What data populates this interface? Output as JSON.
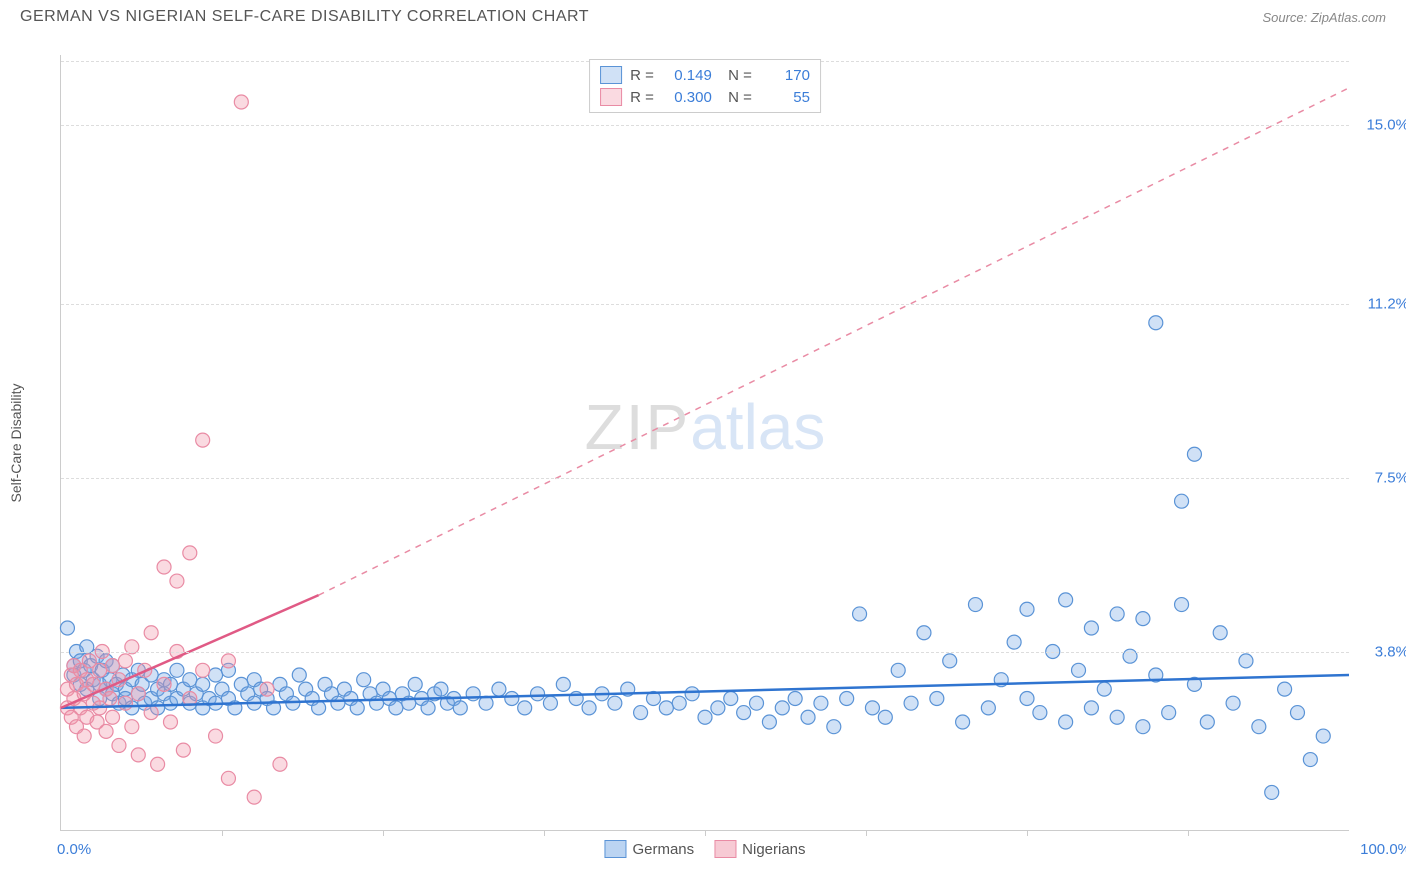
{
  "title": "GERMAN VS NIGERIAN SELF-CARE DISABILITY CORRELATION CHART",
  "source": "Source: ZipAtlas.com",
  "ylabel": "Self-Care Disability",
  "watermark": {
    "part1": "ZIP",
    "part2": "atlas"
  },
  "chart": {
    "type": "scatter",
    "xlim": [
      0,
      100
    ],
    "ylim": [
      0,
      16.5
    ],
    "xlim_labels": {
      "min": "0.0%",
      "max": "100.0%"
    },
    "yticks": [
      {
        "v": 3.8,
        "label": "3.8%"
      },
      {
        "v": 7.5,
        "label": "7.5%"
      },
      {
        "v": 11.2,
        "label": "11.2%"
      },
      {
        "v": 15.0,
        "label": "15.0%"
      }
    ],
    "xticks_minor": [
      12.5,
      25,
      37.5,
      50,
      62.5,
      75,
      87.5
    ],
    "background_color": "#ffffff",
    "grid_color": "#dddddd",
    "marker_radius": 7,
    "marker_stroke_width": 1.2,
    "series": [
      {
        "name": "Germans",
        "R": "0.149",
        "N": "170",
        "fill": "rgba(120,170,230,0.35)",
        "stroke": "#5a93d6",
        "trend": {
          "x1": 0,
          "y1": 2.6,
          "x2": 100,
          "y2": 3.3,
          "color": "#2f74d0",
          "width": 2.5,
          "dash": ""
        },
        "trend_ext": null,
        "points": [
          [
            0.5,
            4.3
          ],
          [
            1,
            3.5
          ],
          [
            1,
            3.3
          ],
          [
            1.2,
            3.8
          ],
          [
            1.5,
            3.6
          ],
          [
            1.5,
            3.1
          ],
          [
            1.8,
            3.4
          ],
          [
            2,
            3.9
          ],
          [
            2,
            3.0
          ],
          [
            2.3,
            3.5
          ],
          [
            2.5,
            3.2
          ],
          [
            2.8,
            3.7
          ],
          [
            3,
            3.1
          ],
          [
            3,
            2.8
          ],
          [
            3.2,
            3.4
          ],
          [
            3.5,
            3.0
          ],
          [
            3.5,
            3.6
          ],
          [
            3.8,
            3.2
          ],
          [
            4,
            2.9
          ],
          [
            4,
            3.5
          ],
          [
            4.3,
            3.1
          ],
          [
            4.5,
            2.7
          ],
          [
            4.8,
            3.3
          ],
          [
            5,
            3.0
          ],
          [
            5,
            2.8
          ],
          [
            5.5,
            3.2
          ],
          [
            5.5,
            2.6
          ],
          [
            6,
            3.4
          ],
          [
            6,
            2.9
          ],
          [
            6.3,
            3.1
          ],
          [
            6.5,
            2.7
          ],
          [
            7,
            3.3
          ],
          [
            7,
            2.8
          ],
          [
            7.5,
            3.0
          ],
          [
            7.5,
            2.6
          ],
          [
            8,
            3.2
          ],
          [
            8,
            2.9
          ],
          [
            8.5,
            2.7
          ],
          [
            8.5,
            3.1
          ],
          [
            9,
            2.8
          ],
          [
            9,
            3.4
          ],
          [
            9.5,
            3.0
          ],
          [
            10,
            2.7
          ],
          [
            10,
            3.2
          ],
          [
            10.5,
            2.9
          ],
          [
            11,
            2.6
          ],
          [
            11,
            3.1
          ],
          [
            11.5,
            2.8
          ],
          [
            12,
            3.3
          ],
          [
            12,
            2.7
          ],
          [
            12.5,
            3.0
          ],
          [
            13,
            2.8
          ],
          [
            13,
            3.4
          ],
          [
            13.5,
            2.6
          ],
          [
            14,
            3.1
          ],
          [
            14.5,
            2.9
          ],
          [
            15,
            2.7
          ],
          [
            15,
            3.2
          ],
          [
            15.5,
            3.0
          ],
          [
            16,
            2.8
          ],
          [
            16.5,
            2.6
          ],
          [
            17,
            3.1
          ],
          [
            17.5,
            2.9
          ],
          [
            18,
            2.7
          ],
          [
            18.5,
            3.3
          ],
          [
            19,
            3.0
          ],
          [
            19.5,
            2.8
          ],
          [
            20,
            2.6
          ],
          [
            20.5,
            3.1
          ],
          [
            21,
            2.9
          ],
          [
            21.5,
            2.7
          ],
          [
            22,
            3.0
          ],
          [
            22.5,
            2.8
          ],
          [
            23,
            2.6
          ],
          [
            23.5,
            3.2
          ],
          [
            24,
            2.9
          ],
          [
            24.5,
            2.7
          ],
          [
            25,
            3.0
          ],
          [
            25.5,
            2.8
          ],
          [
            26,
            2.6
          ],
          [
            26.5,
            2.9
          ],
          [
            27,
            2.7
          ],
          [
            27.5,
            3.1
          ],
          [
            28,
            2.8
          ],
          [
            28.5,
            2.6
          ],
          [
            29,
            2.9
          ],
          [
            29.5,
            3.0
          ],
          [
            30,
            2.7
          ],
          [
            30.5,
            2.8
          ],
          [
            31,
            2.6
          ],
          [
            32,
            2.9
          ],
          [
            33,
            2.7
          ],
          [
            34,
            3.0
          ],
          [
            35,
            2.8
          ],
          [
            36,
            2.6
          ],
          [
            37,
            2.9
          ],
          [
            38,
            2.7
          ],
          [
            39,
            3.1
          ],
          [
            40,
            2.8
          ],
          [
            41,
            2.6
          ],
          [
            42,
            2.9
          ],
          [
            43,
            2.7
          ],
          [
            44,
            3.0
          ],
          [
            45,
            2.5
          ],
          [
            46,
            2.8
          ],
          [
            47,
            2.6
          ],
          [
            48,
            2.7
          ],
          [
            49,
            2.9
          ],
          [
            50,
            2.4
          ],
          [
            51,
            2.6
          ],
          [
            52,
            2.8
          ],
          [
            53,
            2.5
          ],
          [
            54,
            2.7
          ],
          [
            55,
            2.3
          ],
          [
            56,
            2.6
          ],
          [
            57,
            2.8
          ],
          [
            58,
            2.4
          ],
          [
            59,
            2.7
          ],
          [
            60,
            2.2
          ],
          [
            61,
            2.8
          ],
          [
            62,
            4.6
          ],
          [
            63,
            2.6
          ],
          [
            64,
            2.4
          ],
          [
            65,
            3.4
          ],
          [
            66,
            2.7
          ],
          [
            67,
            4.2
          ],
          [
            68,
            2.8
          ],
          [
            69,
            3.6
          ],
          [
            70,
            2.3
          ],
          [
            71,
            4.8
          ],
          [
            72,
            2.6
          ],
          [
            73,
            3.2
          ],
          [
            74,
            4.0
          ],
          [
            75,
            2.8
          ],
          [
            75,
            4.7
          ],
          [
            76,
            2.5
          ],
          [
            77,
            3.8
          ],
          [
            78,
            2.3
          ],
          [
            78,
            4.9
          ],
          [
            79,
            3.4
          ],
          [
            80,
            2.6
          ],
          [
            80,
            4.3
          ],
          [
            81,
            3.0
          ],
          [
            82,
            2.4
          ],
          [
            82,
            4.6
          ],
          [
            83,
            3.7
          ],
          [
            84,
            2.2
          ],
          [
            84,
            4.5
          ],
          [
            85,
            3.3
          ],
          [
            85,
            10.8
          ],
          [
            86,
            2.5
          ],
          [
            87,
            4.8
          ],
          [
            87,
            7.0
          ],
          [
            88,
            3.1
          ],
          [
            88,
            8.0
          ],
          [
            89,
            2.3
          ],
          [
            90,
            4.2
          ],
          [
            91,
            2.7
          ],
          [
            92,
            3.6
          ],
          [
            93,
            2.2
          ],
          [
            94,
            0.8
          ],
          [
            95,
            3.0
          ],
          [
            96,
            2.5
          ],
          [
            97,
            1.5
          ],
          [
            98,
            2.0
          ]
        ]
      },
      {
        "name": "Nigerians",
        "R": "0.300",
        "N": "55",
        "fill": "rgba(240,150,170,0.35)",
        "stroke": "#e98ba4",
        "trend": {
          "x1": 0,
          "y1": 2.6,
          "x2": 20,
          "y2": 5.0,
          "color": "#e05a85",
          "width": 2.5,
          "dash": ""
        },
        "trend_ext": {
          "x1": 20,
          "y1": 5.0,
          "x2": 100,
          "y2": 15.8,
          "color": "#e98ba4",
          "width": 1.5,
          "dash": "6,6"
        },
        "points": [
          [
            0.5,
            2.6
          ],
          [
            0.5,
            3.0
          ],
          [
            0.8,
            2.4
          ],
          [
            0.8,
            3.3
          ],
          [
            1,
            2.8
          ],
          [
            1,
            3.5
          ],
          [
            1.2,
            2.2
          ],
          [
            1.2,
            3.1
          ],
          [
            1.5,
            2.6
          ],
          [
            1.5,
            3.4
          ],
          [
            1.8,
            2.0
          ],
          [
            1.8,
            2.9
          ],
          [
            2,
            3.2
          ],
          [
            2,
            2.4
          ],
          [
            2.2,
            3.6
          ],
          [
            2.5,
            2.7
          ],
          [
            2.5,
            3.1
          ],
          [
            2.8,
            2.3
          ],
          [
            3,
            3.4
          ],
          [
            3,
            2.6
          ],
          [
            3.2,
            3.8
          ],
          [
            3.5,
            2.1
          ],
          [
            3.5,
            3.0
          ],
          [
            3.8,
            2.8
          ],
          [
            4,
            3.5
          ],
          [
            4,
            2.4
          ],
          [
            4.5,
            3.2
          ],
          [
            4.5,
            1.8
          ],
          [
            5,
            2.7
          ],
          [
            5,
            3.6
          ],
          [
            5.5,
            2.2
          ],
          [
            5.5,
            3.9
          ],
          [
            6,
            2.9
          ],
          [
            6,
            1.6
          ],
          [
            6.5,
            3.4
          ],
          [
            7,
            2.5
          ],
          [
            7,
            4.2
          ],
          [
            7.5,
            1.4
          ],
          [
            8,
            3.1
          ],
          [
            8,
            5.6
          ],
          [
            8.5,
            2.3
          ],
          [
            9,
            3.8
          ],
          [
            9,
            5.3
          ],
          [
            9.5,
            1.7
          ],
          [
            10,
            2.8
          ],
          [
            10,
            5.9
          ],
          [
            11,
            3.4
          ],
          [
            11,
            8.3
          ],
          [
            12,
            2.0
          ],
          [
            13,
            1.1
          ],
          [
            13,
            3.6
          ],
          [
            14,
            15.5
          ],
          [
            15,
            0.7
          ],
          [
            16,
            3.0
          ],
          [
            17,
            1.4
          ]
        ]
      }
    ]
  },
  "legend_bottom": [
    {
      "label": "Germans",
      "fill": "rgba(120,170,230,0.5)",
      "stroke": "#5a93d6"
    },
    {
      "label": "Nigerians",
      "fill": "rgba(240,150,170,0.5)",
      "stroke": "#e98ba4"
    }
  ]
}
